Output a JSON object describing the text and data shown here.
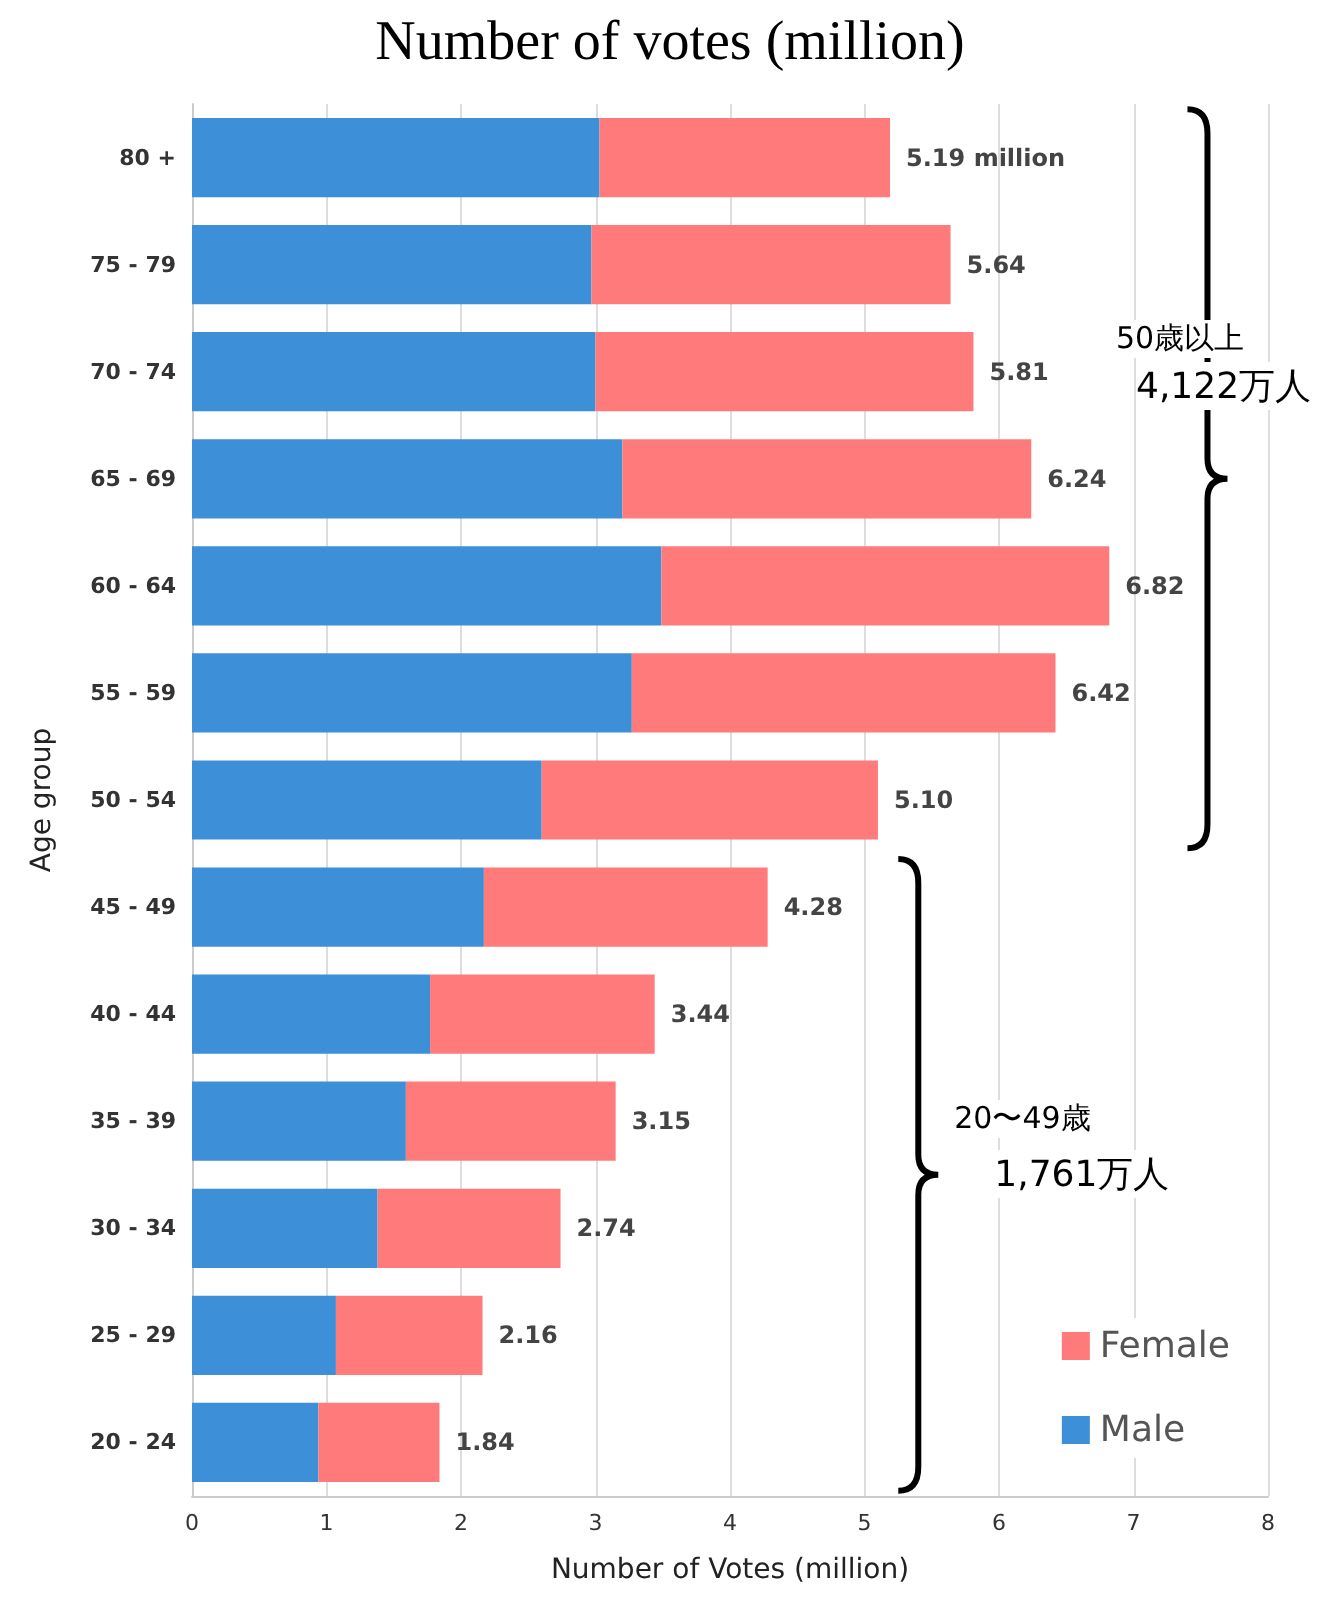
{
  "chart_data": {
    "type": "bar",
    "orientation": "horizontal",
    "stacked": true,
    "title": "Number of votes (million)",
    "xlabel": "Number of Votes (million)",
    "ylabel": "Age group",
    "categories": [
      "80 +",
      "75 - 79",
      "70 - 74",
      "65 - 69",
      "60 - 64",
      "55 - 59",
      "50 - 54",
      "45 - 49",
      "40 - 44",
      "35 - 39",
      "30 - 34",
      "25 - 29",
      "20 - 24"
    ],
    "series": [
      {
        "name": "Male",
        "color": "#3d8fd8",
        "values": [
          3.03,
          2.97,
          3.0,
          3.2,
          3.49,
          3.27,
          2.6,
          2.17,
          1.77,
          1.59,
          1.38,
          1.07,
          0.94
        ]
      },
      {
        "name": "Female",
        "color": "#ff7b7b",
        "values": [
          2.16,
          2.67,
          2.81,
          3.04,
          3.33,
          3.15,
          2.5,
          2.11,
          1.67,
          1.56,
          1.36,
          1.09,
          0.9
        ]
      }
    ],
    "totals": [
      "5.19 million",
      "5.64",
      "5.81",
      "6.24",
      "6.82",
      "6.42",
      "5.10",
      "4.28",
      "3.44",
      "3.15",
      "2.74",
      "2.16",
      "1.84"
    ],
    "xlim": [
      0,
      8
    ],
    "xticks": [
      0,
      1,
      2,
      3,
      4,
      5,
      6,
      7,
      8
    ],
    "grid": "x",
    "legend": "bottom right",
    "annotations": [
      "50歳以上",
      "4,122万人",
      "20〜49歳",
      "1,761万人"
    ]
  }
}
